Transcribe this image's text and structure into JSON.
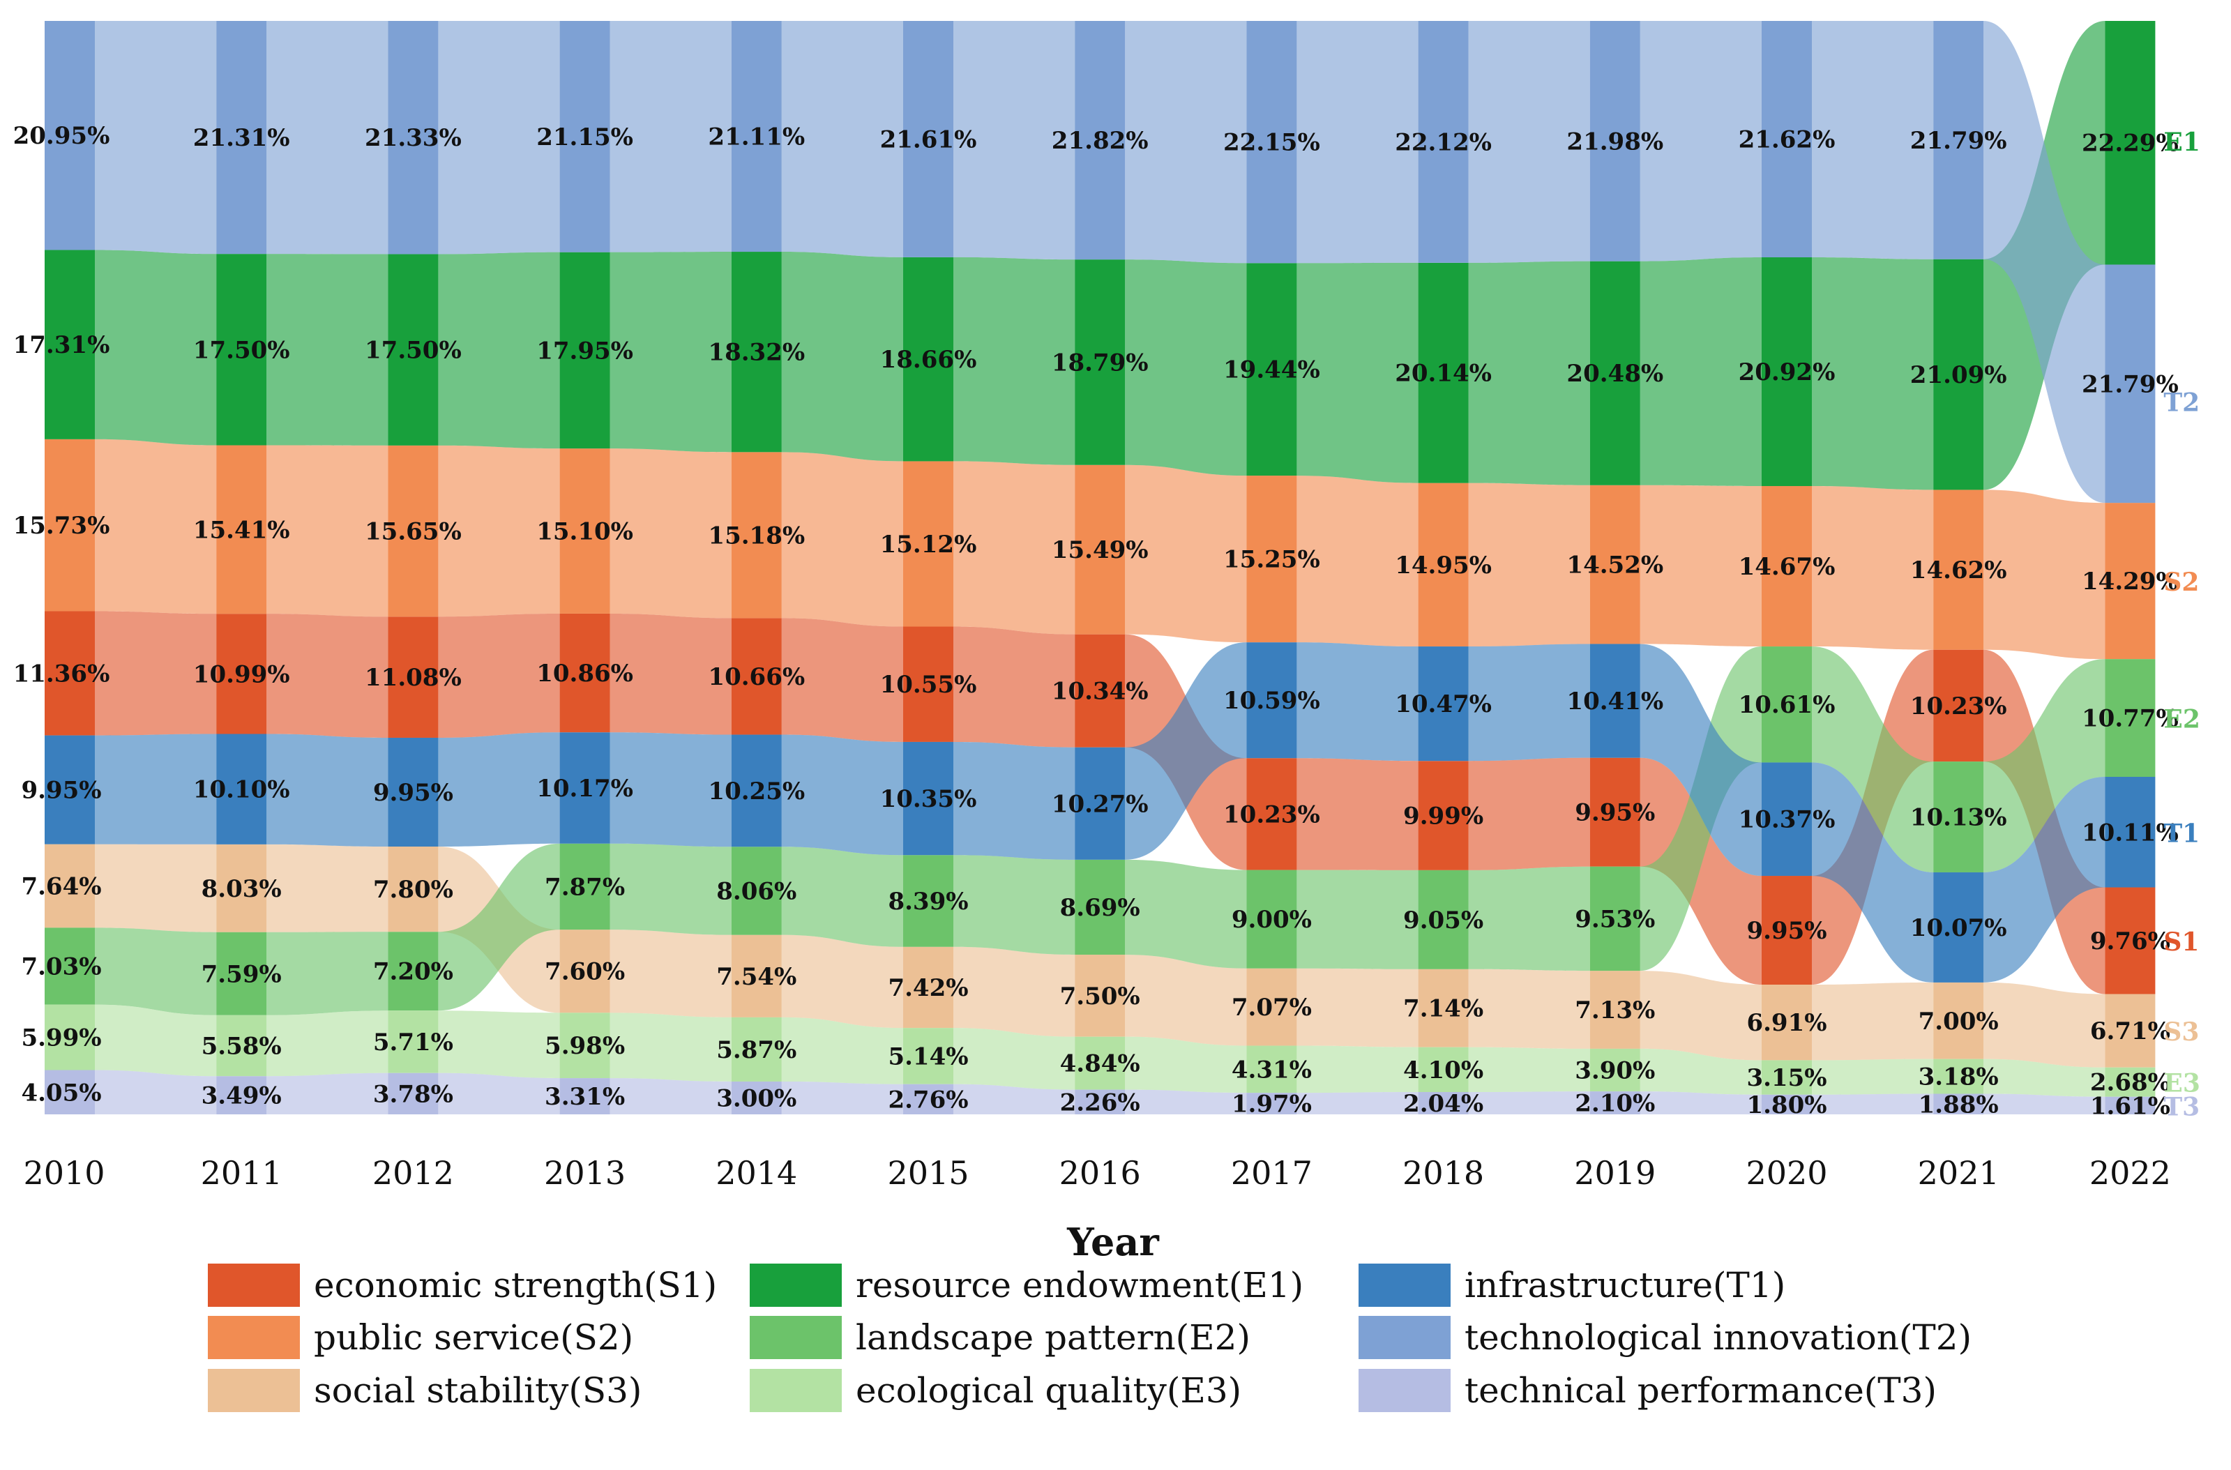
{
  "chart_data": {
    "type": "stacked-bump-sankey",
    "xlabel": "Year",
    "years": [
      "2010",
      "2011",
      "2012",
      "2013",
      "2014",
      "2015",
      "2016",
      "2017",
      "2018",
      "2019",
      "2020",
      "2021",
      "2022"
    ],
    "series": [
      {
        "code": "S1",
        "name": "economic strength(S1)",
        "color": "#E0562B",
        "values": [
          11.36,
          10.99,
          11.08,
          10.86,
          10.66,
          10.55,
          10.34,
          10.23,
          9.99,
          9.95,
          9.95,
          10.23,
          9.76
        ],
        "labels": [
          "11.36%",
          "10.99%",
          "11.08%",
          "10.86%",
          "10.66%",
          "10.55%",
          "10.34%",
          "10.23%",
          "9.99%",
          "9.95%",
          "9.95%",
          "10.23%",
          "9.76%"
        ]
      },
      {
        "code": "S2",
        "name": "public service(S2)",
        "color": "#F28C52",
        "values": [
          15.73,
          15.41,
          15.65,
          15.1,
          15.18,
          15.12,
          15.49,
          15.25,
          14.95,
          14.52,
          14.67,
          14.62,
          14.29
        ],
        "labels": [
          "15.73%",
          "15.41%",
          "15.65%",
          "15.10%",
          "15.18%",
          "15.12%",
          "15.49%",
          "15.25%",
          "14.95%",
          "14.52%",
          "14.67%",
          "14.62%",
          "14.29%"
        ]
      },
      {
        "code": "S3",
        "name": "social stability(S3)",
        "color": "#ECC095",
        "values": [
          7.64,
          8.03,
          7.8,
          7.6,
          7.54,
          7.42,
          7.5,
          7.07,
          7.14,
          7.13,
          6.91,
          7.0,
          6.71
        ],
        "labels": [
          "7.64%",
          "8.03%",
          "7.80%",
          "7.60%",
          "7.54%",
          "7.42%",
          "7.50%",
          "7.07%",
          "7.14%",
          "7.13%",
          "6.91%",
          "7.00%",
          "6.71%"
        ]
      },
      {
        "code": "E1",
        "name": "resource endowment(E1)",
        "color": "#18A03C",
        "values": [
          17.31,
          17.5,
          17.5,
          17.95,
          18.32,
          18.66,
          18.79,
          19.44,
          20.14,
          20.48,
          20.92,
          21.09,
          22.29
        ],
        "labels": [
          "17.31%",
          "17.50%",
          "17.50%",
          "17.95%",
          "18.32%",
          "18.66%",
          "18.79%",
          "19.44%",
          "20.14%",
          "20.48%",
          "20.92%",
          "21.09%",
          "22.29%"
        ]
      },
      {
        "code": "E2",
        "name": "landscape pattern(E2)",
        "color": "#6CC36A",
        "values": [
          7.03,
          7.59,
          7.2,
          7.87,
          8.06,
          8.39,
          8.69,
          9.0,
          9.05,
          9.53,
          10.61,
          10.13,
          10.77
        ],
        "labels": [
          "7.03%",
          "7.59%",
          "7.20%",
          "7.87%",
          "8.06%",
          "8.39%",
          "8.69%",
          "9.00%",
          "9.05%",
          "9.53%",
          "10.61%",
          "10.13%",
          "10.77%"
        ]
      },
      {
        "code": "E3",
        "name": "ecological quality(E3)",
        "color": "#B3E2A3",
        "values": [
          5.99,
          5.58,
          5.71,
          5.98,
          5.87,
          5.14,
          4.84,
          4.31,
          4.1,
          3.9,
          3.15,
          3.18,
          2.68
        ],
        "labels": [
          "5.99%",
          "5.58%",
          "5.71%",
          "5.98%",
          "5.87%",
          "5.14%",
          "4.84%",
          "4.31%",
          "4.10%",
          "3.90%",
          "3.15%",
          "3.18%",
          "2.68%"
        ]
      },
      {
        "code": "T1",
        "name": "infrastructure(T1)",
        "color": "#3A7FBE",
        "values": [
          9.95,
          10.1,
          9.95,
          10.17,
          10.25,
          10.35,
          10.27,
          10.59,
          10.47,
          10.41,
          10.37,
          10.07,
          10.11
        ],
        "labels": [
          "9.95%",
          "10.10%",
          "9.95%",
          "10.17%",
          "10.25%",
          "10.35%",
          "10.27%",
          "10.59%",
          "10.47%",
          "10.41%",
          "10.37%",
          "10.07%",
          "10.11%"
        ]
      },
      {
        "code": "T2",
        "name": "technological innovation(T2)",
        "color": "#7EA1D4",
        "values": [
          20.95,
          21.31,
          21.33,
          21.15,
          21.11,
          21.61,
          21.82,
          22.15,
          22.12,
          21.98,
          21.62,
          21.79,
          21.79
        ],
        "labels": [
          "20.95%",
          "21.31%",
          "21.33%",
          "21.15%",
          "21.11%",
          "21.61%",
          "21.82%",
          "22.15%",
          "22.12%",
          "21.98%",
          "21.62%",
          "21.79%",
          "21.79%"
        ]
      },
      {
        "code": "T3",
        "name": "technical performance(T3)",
        "color": "#B5BDE3",
        "values": [
          4.05,
          3.49,
          3.78,
          3.31,
          3.0,
          2.76,
          2.26,
          1.97,
          2.04,
          2.1,
          1.8,
          1.88,
          1.61
        ],
        "labels": [
          "4.05%",
          "3.49%",
          "3.78%",
          "3.31%",
          "3.00%",
          "2.76%",
          "2.26%",
          "1.97%",
          "2.04%",
          "2.10%",
          "1.80%",
          "1.88%",
          "1.61%"
        ]
      }
    ],
    "stack_order_top_to_bottom": [
      [
        "T2",
        "E1",
        "S2",
        "S1",
        "T1",
        "S3",
        "E2",
        "E3",
        "T3"
      ],
      [
        "T2",
        "E1",
        "S2",
        "S1",
        "T1",
        "S3",
        "E2",
        "E3",
        "T3"
      ],
      [
        "T2",
        "E1",
        "S2",
        "S1",
        "T1",
        "S3",
        "E2",
        "E3",
        "T3"
      ],
      [
        "T2",
        "E1",
        "S2",
        "S1",
        "T1",
        "E2",
        "S3",
        "E3",
        "T3"
      ],
      [
        "T2",
        "E1",
        "S2",
        "S1",
        "T1",
        "E2",
        "S3",
        "E3",
        "T3"
      ],
      [
        "T2",
        "E1",
        "S2",
        "S1",
        "T1",
        "E2",
        "S3",
        "E3",
        "T3"
      ],
      [
        "T2",
        "E1",
        "S2",
        "S1",
        "T1",
        "E2",
        "S3",
        "E3",
        "T3"
      ],
      [
        "T2",
        "E1",
        "S2",
        "T1",
        "S1",
        "E2",
        "S3",
        "E3",
        "T3"
      ],
      [
        "T2",
        "E1",
        "S2",
        "T1",
        "S1",
        "E2",
        "S3",
        "E3",
        "T3"
      ],
      [
        "T2",
        "E1",
        "S2",
        "T1",
        "S1",
        "E2",
        "S3",
        "E3",
        "T3"
      ],
      [
        "T2",
        "E1",
        "S2",
        "E2",
        "T1",
        "S1",
        "S3",
        "E3",
        "T3"
      ],
      [
        "T2",
        "E1",
        "S2",
        "S1",
        "E2",
        "T1",
        "S3",
        "E3",
        "T3"
      ],
      [
        "E1",
        "T2",
        "S2",
        "E2",
        "T1",
        "S1",
        "S3",
        "E3",
        "T3"
      ]
    ],
    "end_labels": [
      "E1",
      "T2",
      "S2",
      "E2",
      "T1",
      "S1",
      "S3",
      "E3",
      "T3"
    ],
    "legend": {
      "placement": "bottom",
      "order": [
        "S1",
        "S2",
        "S3",
        "E1",
        "E2",
        "E3",
        "T1",
        "T2",
        "T3"
      ]
    }
  }
}
